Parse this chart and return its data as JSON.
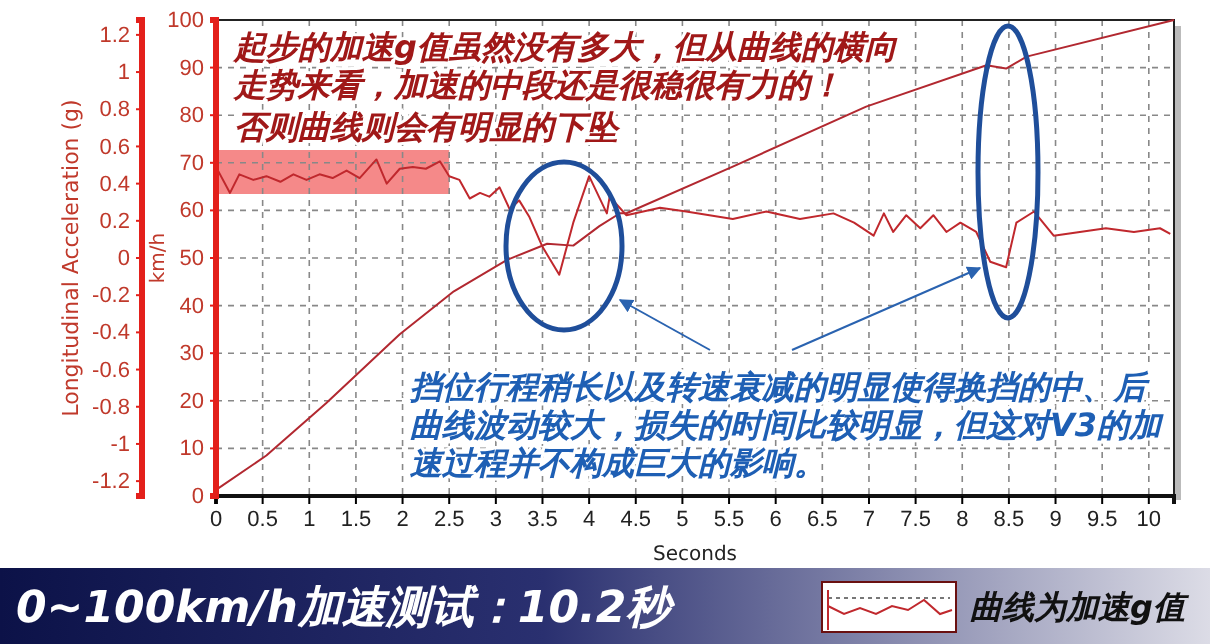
{
  "chart_data": {
    "type": "line",
    "title": "0~100km/h加速测试：10.2秒",
    "xlabel": "Seconds",
    "ylabel": "km/h",
    "y2label": "Longitudinal Acceleration (g)",
    "xlim": [
      0,
      10.27
    ],
    "xticks": [
      0,
      0.5,
      1,
      1.5,
      2,
      2.5,
      3,
      3.5,
      4,
      4.5,
      5,
      5.5,
      6,
      6.5,
      7,
      7.5,
      8,
      8.5,
      9,
      9.5,
      10
    ],
    "ylim": [
      0,
      100
    ],
    "yticks": [
      0,
      10,
      20,
      30,
      40,
      50,
      60,
      70,
      80,
      90,
      100
    ],
    "y2lim": [
      -1.28,
      1.28
    ],
    "y2ticks": [
      -1.2,
      -1,
      -0.8,
      -0.6,
      -0.4,
      -0.2,
      0,
      0.2,
      0.4,
      0.6,
      0.8,
      1,
      1.2
    ],
    "grid": true,
    "legend": "bottom right",
    "bands": [
      {
        "axis": "x",
        "from": 0,
        "to": 2.5,
        "color": "#f47c7c"
      }
    ],
    "series": [
      {
        "color": "#b22830",
        "x": [
          0,
          0.54,
          1.18,
          1.97,
          2.55,
          3.12,
          3.55,
          3.83,
          4.11,
          4.33,
          4.4,
          5.54,
          6.97,
          8.26,
          8.47,
          8.69,
          10.27
        ],
        "values": [
          1.3,
          8.5,
          19.5,
          34,
          43,
          49.6,
          53,
          52.6,
          56.7,
          59.4,
          59.4,
          69.2,
          81.8,
          90.5,
          89.8,
          92.3,
          100
        ]
      },
      {
        "name": "曲线为加速g值",
        "axis": "y2",
        "color": "#c0282d",
        "x": [
          0,
          0.15,
          0.25,
          0.4,
          0.54,
          0.69,
          0.83,
          0.97,
          1.11,
          1.25,
          1.4,
          1.54,
          1.72,
          1.83,
          1.97,
          2.11,
          2.25,
          2.4,
          2.5,
          2.61,
          2.72,
          2.83,
          2.93,
          3.04,
          3.15,
          3.25,
          3.36,
          3.5,
          3.68,
          3.83,
          4,
          4.19,
          4.22,
          4.4,
          4.76,
          5.04,
          5.54,
          5.9,
          6.26,
          6.62,
          6.84,
          7.05,
          7.16,
          7.26,
          7.4,
          7.55,
          7.69,
          7.83,
          7.98,
          8.15,
          8.3,
          8.47,
          8.58,
          8.77,
          8.98,
          9.26,
          9.54,
          9.84,
          10.12,
          10.23
        ],
        "values": [
          0.49,
          0.35,
          0.45,
          0.42,
          0.44,
          0.41,
          0.45,
          0.42,
          0.45,
          0.43,
          0.47,
          0.43,
          0.53,
          0.4,
          0.48,
          0.49,
          0.48,
          0.52,
          0.44,
          0.42,
          0.32,
          0.35,
          0.33,
          0.38,
          0.26,
          0.31,
          0.22,
          0.06,
          -0.09,
          0.19,
          0.44,
          0.24,
          0.33,
          0.23,
          0.27,
          0.25,
          0.21,
          0.25,
          0.21,
          0.24,
          0.19,
          0.12,
          0.24,
          0.14,
          0.23,
          0.16,
          0.23,
          0.14,
          0.19,
          0.14,
          -0.02,
          -0.05,
          0.19,
          0.25,
          0.12,
          0.14,
          0.16,
          0.14,
          0.16,
          0.13
        ]
      }
    ],
    "annotations": [
      "起步的加速g值虽然没有多大，但从曲线的横向走势来看，加速的中段还是很稳很有力的！",
      "否则曲线则会有明显的下坠",
      "挡位行程稍长以及转速衰减的明显使得换挡的中、后曲线波动较大，损失的时间比较明显，但这对V3的加速过程并不构成巨大的影响。"
    ]
  }
}
